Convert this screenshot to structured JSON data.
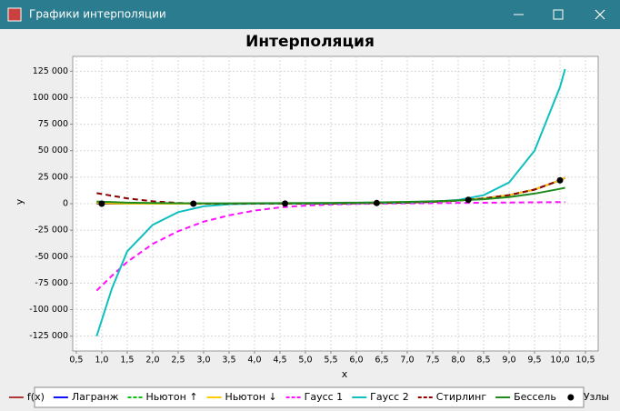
{
  "window": {
    "title": "Графики интерполяции"
  },
  "chart_data": {
    "type": "line",
    "title": "Интерполяция",
    "x_label": "x",
    "y_label": "y",
    "x": [
      0.9,
      1.2,
      1.5,
      2,
      2.5,
      3,
      3.5,
      4,
      4.5,
      5,
      5.5,
      6,
      6.5,
      7,
      7.5,
      8,
      8.5,
      9,
      9.5,
      10,
      10.1
    ],
    "series": [
      {
        "name": "f(x)",
        "color": "#b03a3a",
        "dashed": false,
        "values": [
          2.5,
          3.3,
          4.5,
          7.4,
          12,
          20,
          33,
          55,
          90,
          148,
          245,
          403,
          665,
          1097,
          1808,
          2981,
          4915,
          8103,
          13360,
          22026,
          24343
        ]
      },
      {
        "name": "Лагранж",
        "color": "#1010ff",
        "dashed": false,
        "values": [
          1000,
          400,
          100,
          0,
          30,
          30,
          40,
          60,
          100,
          150,
          240,
          400,
          670,
          1100,
          1800,
          2980,
          4900,
          8100,
          13300,
          22026,
          24500
        ]
      },
      {
        "name": "Ньютон ↑",
        "color": "#10c010",
        "dashed": true,
        "values": [
          1000,
          400,
          100,
          0,
          30,
          30,
          40,
          60,
          100,
          150,
          240,
          400,
          670,
          1100,
          1800,
          2980,
          4900,
          8100,
          13300,
          22026,
          24500
        ]
      },
      {
        "name": "Ньютон ↓",
        "color": "#ffcc00",
        "dashed": false,
        "values": [
          1000,
          400,
          100,
          0,
          30,
          30,
          40,
          60,
          100,
          150,
          240,
          400,
          670,
          1100,
          1800,
          2980,
          4900,
          8100,
          13300,
          22026,
          24500
        ]
      },
      {
        "name": "Гаусс 1",
        "color": "#ff10ff",
        "dashed": true,
        "values": [
          -82000,
          -68000,
          -55000,
          -38000,
          -26000,
          -17000,
          -11000,
          -6500,
          -3500,
          -1800,
          -800,
          -200,
          100,
          300,
          500,
          700,
          900,
          1100,
          1300,
          1500,
          1550
        ]
      },
      {
        "name": "Гаусс 2",
        "color": "#10bfbf",
        "dashed": false,
        "values": [
          -125000,
          -80000,
          -45000,
          -20000,
          -8000,
          -2500,
          -500,
          0,
          100,
          150,
          200,
          400,
          700,
          1100,
          1800,
          3500,
          8000,
          20000,
          50000,
          110000,
          127000
        ]
      },
      {
        "name": "Стирлинг",
        "color": "#8b0000",
        "dashed": true,
        "values": [
          10000,
          7500,
          5000,
          2300,
          700,
          20,
          40,
          60,
          100,
          150,
          240,
          400,
          670,
          1100,
          1800,
          2980,
          4900,
          8100,
          13300,
          22026,
          24300
        ]
      },
      {
        "name": "Бессель",
        "color": "#1e8b1e",
        "dashed": false,
        "values": [
          2000,
          1500,
          1000,
          600,
          400,
          300,
          300,
          400,
          500,
          600,
          800,
          1000,
          1300,
          1700,
          2300,
          3000,
          4200,
          6200,
          9500,
          14000,
          15000
        ]
      },
      {
        "name": "Узлы",
        "color": "#000000",
        "type": "scatter",
        "x": [
          1.0,
          2.8,
          4.6,
          6.4,
          8.2,
          10.0
        ],
        "values": [
          2.7,
          16.4,
          99.5,
          601.8,
          3641,
          22026
        ]
      }
    ],
    "xlim": [
      0.43,
      10.75
    ],
    "ylim": [
      -139000,
      139000
    ],
    "xticks": [
      {
        "value": 0.5,
        "label": "0,5"
      },
      {
        "value": 1,
        "label": "1,0"
      },
      {
        "value": 1.5,
        "label": "1,5"
      },
      {
        "value": 2,
        "label": "2,0"
      },
      {
        "value": 2.5,
        "label": "2,5"
      },
      {
        "value": 3,
        "label": "3,0"
      },
      {
        "value": 3.5,
        "label": "3,5"
      },
      {
        "value": 4,
        "label": "4,0"
      },
      {
        "value": 4.5,
        "label": "4,5"
      },
      {
        "value": 5,
        "label": "5,0"
      },
      {
        "value": 5.5,
        "label": "5,5"
      },
      {
        "value": 6,
        "label": "6,0"
      },
      {
        "value": 6.5,
        "label": "6,5"
      },
      {
        "value": 7,
        "label": "7,0"
      },
      {
        "value": 7.5,
        "label": "7,5"
      },
      {
        "value": 8,
        "label": "8,0"
      },
      {
        "value": 8.5,
        "label": "8,5"
      },
      {
        "value": 9,
        "label": "9,0"
      },
      {
        "value": 9.5,
        "label": "9,5"
      },
      {
        "value": 10,
        "label": "10,0"
      },
      {
        "value": 10.5,
        "label": "10,5"
      }
    ],
    "yticks": [
      {
        "value": -125000,
        "label": "-125 000"
      },
      {
        "value": -100000,
        "label": "-100 000"
      },
      {
        "value": -75000,
        "label": "-75 000"
      },
      {
        "value": -50000,
        "label": "-50 000"
      },
      {
        "value": -25000,
        "label": "-25 000"
      },
      0,
      {
        "value": 25000,
        "label": "25 000"
      },
      {
        "value": 50000,
        "label": "50 000"
      },
      {
        "value": 75000,
        "label": "75 000"
      },
      {
        "value": 100000,
        "label": "100 000"
      },
      {
        "value": 125000,
        "label": "125 000"
      }
    ],
    "grid": true,
    "legend": "bottom"
  }
}
